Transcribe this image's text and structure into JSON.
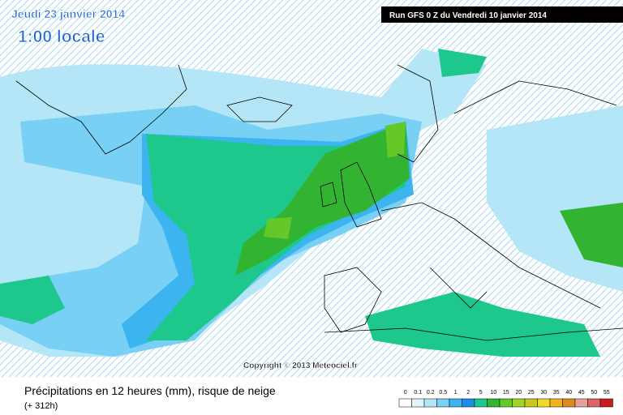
{
  "header": {
    "date": "Jeudi 23 janvier 2014",
    "time": "1:00 locale",
    "run": "Run GFS 0 Z du Vendredi 10 janvier 2014"
  },
  "map": {
    "copyright": "Copyright © 2013 Meteociel.fr"
  },
  "footer": {
    "title": "Précipitations en 12 heures (mm), risque de neige",
    "lead": "(+ 312h)"
  },
  "legend": {
    "items": [
      {
        "label": 0,
        "color": "#ffffff"
      },
      {
        "label": 0.1,
        "color": "#e0f4fc"
      },
      {
        "label": 0.2,
        "color": "#b4e6f8"
      },
      {
        "label": 0.5,
        "color": "#78d0f4"
      },
      {
        "label": 1,
        "color": "#3cb4f0"
      },
      {
        "label": 2,
        "color": "#1e8ce6"
      },
      {
        "label": 5,
        "color": "#1ec88c"
      },
      {
        "label": 10,
        "color": "#32b432"
      },
      {
        "label": 15,
        "color": "#64c828"
      },
      {
        "label": 20,
        "color": "#a0d228"
      },
      {
        "label": 25,
        "color": "#c8c81e"
      },
      {
        "label": 30,
        "color": "#f0dc28"
      },
      {
        "label": 35,
        "color": "#f0b41e"
      },
      {
        "label": 40,
        "color": "#dc8c1e"
      },
      {
        "label": 45,
        "color": "#e6a0a0"
      },
      {
        "label": 50,
        "color": "#dc6464"
      },
      {
        "label": 55,
        "color": "#c81e1e"
      }
    ]
  }
}
